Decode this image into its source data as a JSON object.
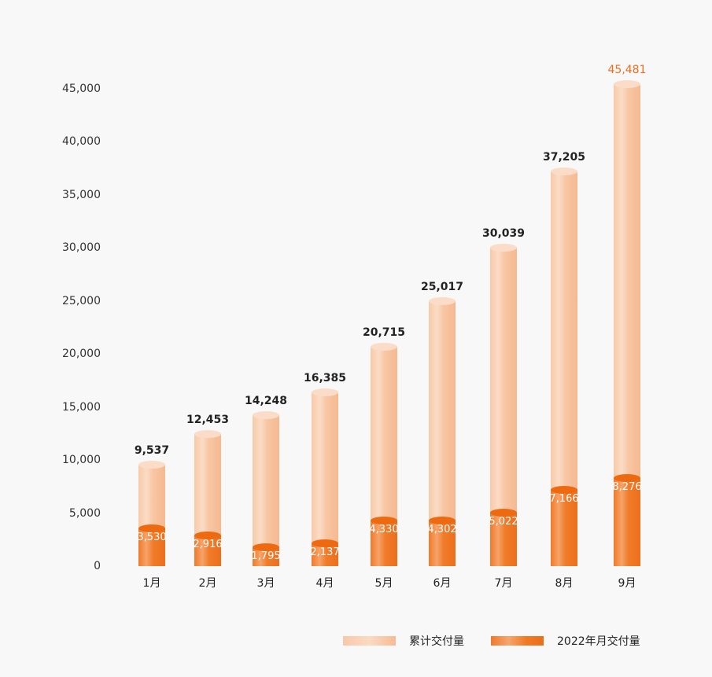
{
  "chart_data": {
    "type": "bar",
    "title": "",
    "xlabel": "",
    "ylabel": "",
    "ylim": [
      0,
      45000
    ],
    "grid": false,
    "legend_position": "bottom-right",
    "categories": [
      "1月",
      "2月",
      "3月",
      "4月",
      "5月",
      "6月",
      "7月",
      "8月",
      "9月"
    ],
    "series": [
      {
        "name": "累计交付量",
        "color": "#f8c8a6",
        "values": [
          9537,
          12453,
          14248,
          16385,
          20715,
          25017,
          30039,
          37205,
          45481
        ]
      },
      {
        "name": "2022年月交付量",
        "color": "#f07a28",
        "values": [
          3530,
          2916,
          1795,
          2137,
          4330,
          4302,
          5022,
          7166,
          8276
        ]
      }
    ],
    "y_ticks": [
      "0",
      "5,000",
      "10,000",
      "15,000",
      "20,000",
      "25,000",
      "30,000",
      "35,000",
      "40,000",
      "45,000"
    ],
    "cumulative_labels": [
      "9,537",
      "12,453",
      "14,248",
      "16,385",
      "20,715",
      "25,017",
      "30,039",
      "37,205",
      "45,481"
    ],
    "monthly_labels": [
      "3,530",
      "2,916",
      "1,795",
      "2,137",
      "4,330",
      "4,302",
      "5,022",
      "7,166",
      "8,276"
    ],
    "highlight_color": "#f06d1e"
  },
  "legend": {
    "cumulative": "累计交付量",
    "monthly": "2022年月交付量"
  }
}
